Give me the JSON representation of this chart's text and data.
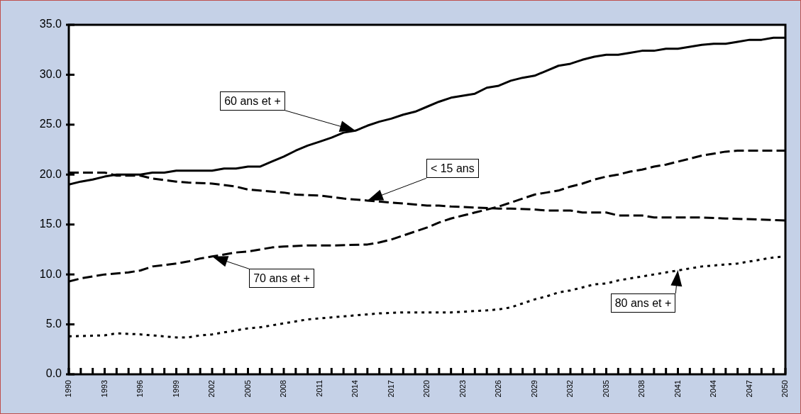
{
  "chart_data": {
    "type": "line",
    "xlim": [
      1990,
      2050
    ],
    "xticks": [
      {
        "value": 1990,
        "label": "1990"
      },
      {
        "value": 1991,
        "label": null
      },
      {
        "value": 1992,
        "label": null
      },
      {
        "value": 1993,
        "label": "1993"
      },
      {
        "value": 1994,
        "label": null
      },
      {
        "value": 1995,
        "label": null
      },
      {
        "value": 1996,
        "label": "1996"
      },
      {
        "value": 1997,
        "label": null
      },
      {
        "value": 1998,
        "label": null
      },
      {
        "value": 1999,
        "label": "1999"
      },
      {
        "value": 2000,
        "label": null
      },
      {
        "value": 2001,
        "label": null
      },
      {
        "value": 2002,
        "label": "2002"
      },
      {
        "value": 2003,
        "label": null
      },
      {
        "value": 2004,
        "label": null
      },
      {
        "value": 2005,
        "label": "2005"
      },
      {
        "value": 2006,
        "label": null
      },
      {
        "value": 2007,
        "label": null
      },
      {
        "value": 2008,
        "label": "2008"
      },
      {
        "value": 2009,
        "label": null
      },
      {
        "value": 2010,
        "label": null
      },
      {
        "value": 2011,
        "label": "2011"
      },
      {
        "value": 2012,
        "label": null
      },
      {
        "value": 2013,
        "label": null
      },
      {
        "value": 2014,
        "label": "2014"
      },
      {
        "value": 2015,
        "label": null
      },
      {
        "value": 2016,
        "label": null
      },
      {
        "value": 2017,
        "label": "2017"
      },
      {
        "value": 2018,
        "label": null
      },
      {
        "value": 2019,
        "label": null
      },
      {
        "value": 2020,
        "label": "2020"
      },
      {
        "value": 2021,
        "label": null
      },
      {
        "value": 2022,
        "label": null
      },
      {
        "value": 2023,
        "label": "2023"
      },
      {
        "value": 2024,
        "label": null
      },
      {
        "value": 2025,
        "label": null
      },
      {
        "value": 2026,
        "label": "2026"
      },
      {
        "value": 2027,
        "label": null
      },
      {
        "value": 2028,
        "label": null
      },
      {
        "value": 2029,
        "label": "2029"
      },
      {
        "value": 2030,
        "label": null
      },
      {
        "value": 2031,
        "label": null
      },
      {
        "value": 2032,
        "label": "2032"
      },
      {
        "value": 2033,
        "label": null
      },
      {
        "value": 2034,
        "label": null
      },
      {
        "value": 2035,
        "label": "2035"
      },
      {
        "value": 2036,
        "label": null
      },
      {
        "value": 2037,
        "label": null
      },
      {
        "value": 2038,
        "label": "2038"
      },
      {
        "value": 2039,
        "label": null
      },
      {
        "value": 2040,
        "label": null
      },
      {
        "value": 2041,
        "label": "2041"
      },
      {
        "value": 2042,
        "label": null
      },
      {
        "value": 2043,
        "label": null
      },
      {
        "value": 2044,
        "label": "2044"
      },
      {
        "value": 2045,
        "label": null
      },
      {
        "value": 2046,
        "label": null
      },
      {
        "value": 2047,
        "label": "2047"
      },
      {
        "value": 2048,
        "label": null
      },
      {
        "value": 2049,
        "label": null
      },
      {
        "value": 2050,
        "label": "2050"
      }
    ],
    "ylim": [
      0,
      35
    ],
    "yticks": [
      {
        "value": 0,
        "label": "0.0"
      },
      {
        "value": 5,
        "label": "5.0"
      },
      {
        "value": 10,
        "label": "10.0"
      },
      {
        "value": 15,
        "label": "15.0"
      },
      {
        "value": 20,
        "label": "20.0"
      },
      {
        "value": 25,
        "label": "25.0"
      },
      {
        "value": 30,
        "label": "30.0"
      },
      {
        "value": 35,
        "label": "35.0"
      }
    ],
    "grid": false,
    "legend": false,
    "marker": "none",
    "series": [
      {
        "color": "#000000",
        "line_style": "solid",
        "x": [
          1990,
          1991,
          1992,
          1993,
          1994,
          1995,
          1996,
          1997,
          1998,
          1999,
          2000,
          2001,
          2002,
          2003,
          2004,
          2005,
          2006,
          2007,
          2008,
          2009,
          2010,
          2011,
          2012,
          2013,
          2014,
          2015,
          2016,
          2017,
          2018,
          2019,
          2020,
          2021,
          2022,
          2023,
          2024,
          2025,
          2026,
          2027,
          2028,
          2029,
          2030,
          2031,
          2032,
          2033,
          2034,
          2035,
          2036,
          2037,
          2038,
          2039,
          2040,
          2041,
          2042,
          2043,
          2044,
          2045,
          2046,
          2047,
          2048,
          2049,
          2050
        ],
        "values": [
          19.0,
          19.3,
          19.5,
          19.8,
          20.0,
          20.0,
          20.0,
          20.2,
          20.2,
          20.4,
          20.4,
          20.4,
          20.4,
          20.6,
          20.6,
          20.8,
          20.8,
          21.3,
          21.8,
          22.4,
          22.9,
          23.3,
          23.7,
          24.2,
          24.4,
          24.9,
          25.3,
          25.6,
          26.0,
          26.3,
          26.8,
          27.3,
          27.7,
          27.9,
          28.1,
          28.7,
          28.9,
          29.4,
          29.7,
          29.9,
          30.4,
          30.9,
          31.1,
          31.5,
          31.8,
          32.0,
          32.0,
          32.2,
          32.4,
          32.4,
          32.6,
          32.6,
          32.8,
          33.0,
          33.1,
          33.1,
          33.3,
          33.5,
          33.5,
          33.7,
          33.7
        ]
      },
      {
        "color": "#000000",
        "line_style": "dashed",
        "x": [
          1990,
          1993,
          1994,
          1996,
          1997,
          1999,
          2000,
          2002,
          2004,
          2005,
          2006,
          2008,
          2009,
          2011,
          2013,
          2015,
          2017,
          2018,
          2019,
          2020,
          2021,
          2022,
          2024,
          2026,
          2027,
          2029,
          2030,
          2032,
          2033,
          2035,
          2036,
          2038,
          2039,
          2040,
          2043,
          2045,
          2048,
          2050
        ],
        "values": [
          20.2,
          20.2,
          19.9,
          19.9,
          19.6,
          19.3,
          19.2,
          19.1,
          18.8,
          18.5,
          18.4,
          18.2,
          18.0,
          17.9,
          17.6,
          17.4,
          17.2,
          17.1,
          17.0,
          16.9,
          16.9,
          16.8,
          16.7,
          16.6,
          16.6,
          16.5,
          16.4,
          16.4,
          16.2,
          16.2,
          15.9,
          15.9,
          15.7,
          15.7,
          15.7,
          15.6,
          15.5,
          15.4
        ]
      },
      {
        "color": "#000000",
        "line_style": "dashed",
        "x": [
          1990,
          1991,
          1992,
          1993,
          1995,
          1996,
          1997,
          1999,
          2000,
          2001,
          2002,
          2004,
          2005,
          2006,
          2007,
          2008,
          2010,
          2012,
          2015,
          2016,
          2017,
          2018,
          2019,
          2020,
          2021,
          2022,
          2023,
          2024,
          2025,
          2026,
          2027,
          2028,
          2029,
          2030,
          2031,
          2032,
          2033,
          2034,
          2035,
          2036,
          2037,
          2038,
          2039,
          2040,
          2041,
          2042,
          2043,
          2044,
          2045,
          2046,
          2050
        ],
        "values": [
          9.3,
          9.6,
          9.8,
          10.0,
          10.2,
          10.4,
          10.8,
          11.1,
          11.3,
          11.6,
          11.8,
          12.2,
          12.3,
          12.5,
          12.7,
          12.8,
          12.9,
          12.9,
          13.0,
          13.2,
          13.5,
          13.9,
          14.3,
          14.7,
          15.2,
          15.6,
          15.9,
          16.2,
          16.5,
          16.8,
          17.2,
          17.6,
          18.0,
          18.2,
          18.4,
          18.8,
          19.1,
          19.5,
          19.8,
          20.0,
          20.3,
          20.5,
          20.8,
          21.0,
          21.3,
          21.6,
          21.9,
          22.1,
          22.3,
          22.4,
          22.4
        ]
      },
      {
        "color": "#000000",
        "line_style": "dotted",
        "x": [
          1990,
          1993,
          1994,
          1996,
          1997,
          1999,
          2000,
          2001,
          2002,
          2003,
          2004,
          2005,
          2006,
          2007,
          2008,
          2010,
          2012,
          2014,
          2016,
          2018,
          2020,
          2022,
          2025,
          2026,
          2027,
          2028,
          2029,
          2030,
          2031,
          2032,
          2033,
          2034,
          2035,
          2036,
          2037,
          2038,
          2039,
          2040,
          2041,
          2042,
          2043,
          2044,
          2045,
          2046,
          2047,
          2048,
          2049,
          2050
        ],
        "values": [
          3.8,
          3.9,
          4.1,
          4.0,
          3.9,
          3.7,
          3.7,
          3.9,
          4.0,
          4.2,
          4.4,
          4.6,
          4.7,
          4.9,
          5.1,
          5.5,
          5.7,
          5.9,
          6.1,
          6.2,
          6.2,
          6.2,
          6.4,
          6.5,
          6.7,
          7.1,
          7.5,
          7.8,
          8.2,
          8.4,
          8.7,
          9.0,
          9.1,
          9.4,
          9.6,
          9.8,
          10.0,
          10.2,
          10.4,
          10.6,
          10.8,
          10.9,
          11.0,
          11.1,
          11.3,
          11.5,
          11.7,
          11.8
        ]
      }
    ],
    "annotations": [
      {
        "text": "60 ans et +",
        "x": 2014,
        "y": 24.4
      },
      {
        "text": "< 15 ans",
        "x": 2015,
        "y": 17.4
      },
      {
        "text": "70 ans et +",
        "x": 2002,
        "y": 11.8
      },
      {
        "text": "80 ans et +",
        "x": 2041,
        "y": 10.4
      }
    ]
  }
}
